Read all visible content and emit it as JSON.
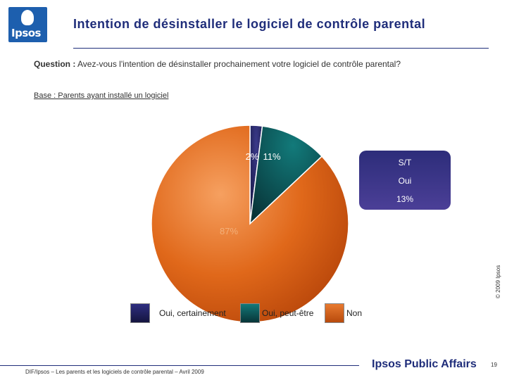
{
  "logo": {
    "text": "Ipsos"
  },
  "title": "Intention de désinstaller le logiciel de contrôle parental",
  "question": {
    "label": "Question :",
    "text": "Avez-vous l'intention de désinstaller prochainement votre logiciel de contrôle parental?"
  },
  "base": "Base : Parents ayant installé un logiciel",
  "chart_data": {
    "type": "pie",
    "title": "Intention de désinstaller le logiciel de contrôle parental",
    "slices": [
      {
        "name": "Oui, certainement",
        "value": 2,
        "label": "2%",
        "color": "#1f1f5e"
      },
      {
        "name": "Oui, peut-être",
        "value": 11,
        "label": "11%",
        "color": "#0e4a4f"
      },
      {
        "name": "Non",
        "value": 87,
        "label": "87%",
        "color": "#d85d10"
      }
    ],
    "summary_box": {
      "line1": "S/T",
      "line2": "Oui",
      "line3": "13%"
    }
  },
  "legend": [
    "Oui, certainement",
    "Oui, peut-être",
    "Non"
  ],
  "copyright": "© 2009 Ipsos",
  "footer": "DIF/Ipsos – Les parents et les logiciels de contrôle parental – Avril 2009",
  "brand": "Ipsos Public Affairs",
  "page_number": "19"
}
